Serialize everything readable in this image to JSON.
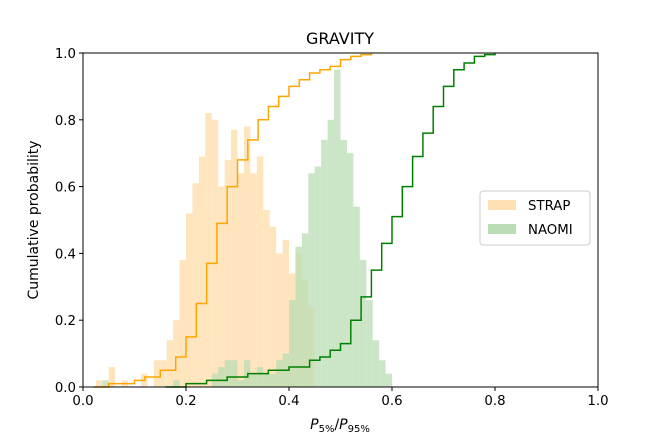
{
  "chart_data": {
    "type": "histogram",
    "title": "GRAVITY",
    "xlabel_main": "P",
    "xlabel_sub1": "5%",
    "xlabel_sub2": "95%",
    "ylabel": "Cumulative probability",
    "xlim": [
      0.0,
      1.0
    ],
    "ylim": [
      0.0,
      1.0
    ],
    "xticks": [
      "0.0",
      "0.2",
      "0.4",
      "0.6",
      "0.8",
      "1.0"
    ],
    "yticks": [
      "0.0",
      "0.2",
      "0.4",
      "0.6",
      "0.8",
      "1.0"
    ],
    "legend_position": "center-right",
    "grid": false,
    "bin_width": 0.0125,
    "series": [
      {
        "name": "STRAP",
        "kind": "histogram",
        "color": "#ffe0b2",
        "bins_start": 0.025,
        "heights": [
          0.02,
          0.0,
          0.06,
          0.0,
          0.02,
          0.0,
          0.0,
          0.04,
          0.0,
          0.08,
          0.08,
          0.14,
          0.2,
          0.38,
          0.52,
          0.61,
          0.69,
          0.82,
          0.8,
          0.6,
          0.68,
          0.77,
          0.64,
          0.78,
          0.64,
          0.69,
          0.53,
          0.48,
          0.4,
          0.44,
          0.34,
          0.4,
          0.32,
          0.24
        ]
      },
      {
        "name": "NAOMI",
        "kind": "histogram",
        "color": "#b9dcb4",
        "bins_start": 0.025,
        "heights": [
          0.0,
          0.02,
          0.0,
          0.0,
          0.0,
          0.0,
          0.0,
          0.0,
          0.0,
          0.0,
          0.0,
          0.0,
          0.02,
          0.0,
          0.0,
          0.0,
          0.0,
          0.0,
          0.04,
          0.06,
          0.08,
          0.08,
          0.02,
          0.08,
          0.04,
          0.06,
          0.04,
          0.04,
          0.08,
          0.1,
          0.26,
          0.42,
          0.46,
          0.64,
          0.66,
          0.74,
          0.8,
          0.95,
          0.74,
          0.7,
          0.54,
          0.38,
          0.26,
          0.14,
          0.08,
          0.04
        ]
      },
      {
        "name": "STRAP cumulative",
        "kind": "ecdf",
        "color": "#ffa500",
        "x": [
          0.02,
          0.05,
          0.08,
          0.1,
          0.12,
          0.15,
          0.18,
          0.2,
          0.22,
          0.24,
          0.26,
          0.28,
          0.3,
          0.32,
          0.34,
          0.36,
          0.38,
          0.4,
          0.42,
          0.44,
          0.46,
          0.48,
          0.5,
          0.52,
          0.54,
          0.56
        ],
        "y": [
          0.0,
          0.01,
          0.01,
          0.02,
          0.03,
          0.05,
          0.09,
          0.15,
          0.25,
          0.37,
          0.49,
          0.6,
          0.68,
          0.74,
          0.8,
          0.84,
          0.87,
          0.9,
          0.92,
          0.94,
          0.95,
          0.96,
          0.98,
          0.99,
          0.995,
          1.0
        ]
      },
      {
        "name": "NAOMI cumulative",
        "kind": "ecdf",
        "color": "#008000",
        "x": [
          0.16,
          0.2,
          0.24,
          0.28,
          0.32,
          0.36,
          0.4,
          0.44,
          0.46,
          0.48,
          0.5,
          0.52,
          0.54,
          0.56,
          0.58,
          0.6,
          0.62,
          0.64,
          0.66,
          0.68,
          0.7,
          0.72,
          0.74,
          0.76,
          0.78,
          0.8
        ],
        "y": [
          0.0,
          0.01,
          0.02,
          0.03,
          0.04,
          0.05,
          0.06,
          0.08,
          0.09,
          0.11,
          0.13,
          0.2,
          0.27,
          0.35,
          0.43,
          0.51,
          0.6,
          0.69,
          0.76,
          0.84,
          0.9,
          0.95,
          0.97,
          0.99,
          0.995,
          1.0
        ]
      }
    ]
  }
}
